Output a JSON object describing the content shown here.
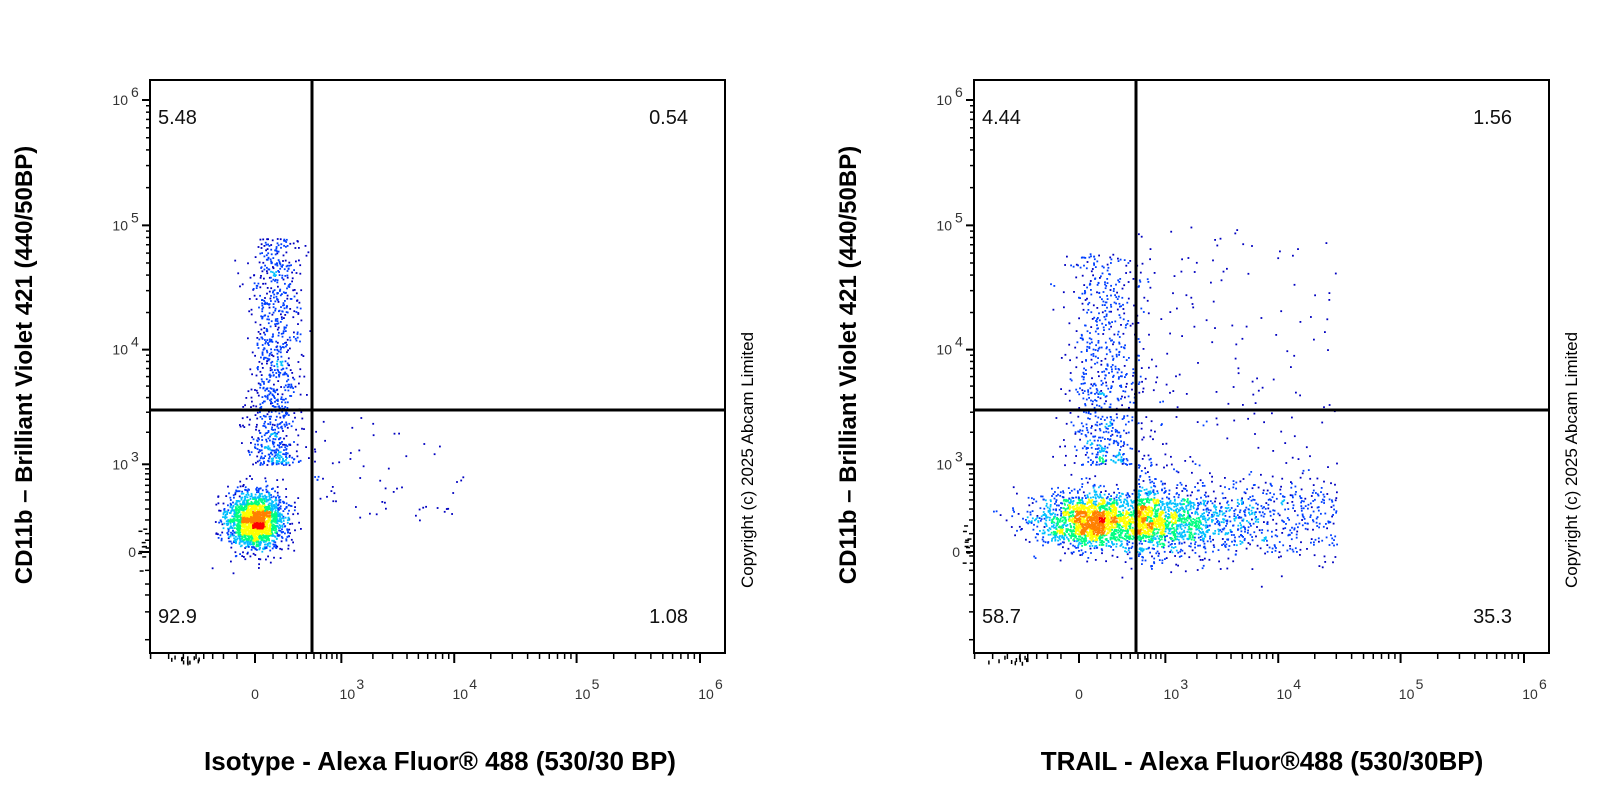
{
  "chart_data": [
    {
      "type": "scatter",
      "xlabel": "Isotype - Alexa Fluor® 488 (530/30 BP)",
      "ylabel": "CD11b – Brilliant Violet 421 (440/50BP)",
      "x_scale": "biexponential",
      "y_scale": "biexponential",
      "x_ticks": [
        "0",
        "10^3",
        "10^4",
        "10^5",
        "10^6"
      ],
      "y_ticks": [
        "0",
        "10^3",
        "10^4",
        "10^5",
        "10^6"
      ],
      "quadrant_gate": {
        "x": 450,
        "y": 1800
      },
      "quadrants": {
        "upper_left": "5.48",
        "upper_right": "0.54",
        "lower_left": "92.9",
        "lower_right": "1.08"
      },
      "copyright": "Copyright (c) 2025 Abcam Limited",
      "population": {
        "main_cluster": {
          "x_center": 0,
          "y_center": 200,
          "x_spread": "narrow",
          "y_spread": "narrow"
        },
        "tail": {
          "x_range": [
            -100,
            800
          ],
          "y_range": [
            1000,
            80000
          ]
        },
        "sparse_right": {
          "x_range": [
            500,
            12000
          ],
          "y_range": [
            0,
            3000
          ]
        }
      },
      "colormap": [
        "#0000c0",
        "#0040ff",
        "#00c0ff",
        "#00ff80",
        "#ffff00",
        "#ff8000",
        "#ff0000"
      ]
    },
    {
      "type": "scatter",
      "xlabel": "TRAIL - Alexa Fluor®488 (530/30BP)",
      "ylabel": "CD11b – Brilliant Violet 421 (440/50BP)",
      "x_scale": "biexponential",
      "y_scale": "biexponential",
      "x_ticks": [
        "0",
        "10^3",
        "10^4",
        "10^5",
        "10^6"
      ],
      "y_ticks": [
        "0",
        "10^3",
        "10^4",
        "10^5",
        "10^6"
      ],
      "quadrant_gate": {
        "x": 450,
        "y": 1800
      },
      "quadrants": {
        "upper_left": "4.44",
        "upper_right": "1.56",
        "lower_left": "58.7",
        "lower_right": "35.3"
      },
      "copyright": "Copyright (c) 2025 Abcam Limited",
      "population": {
        "main_cluster": {
          "x_center": 150,
          "y_center": 200,
          "x_spread": "wide",
          "y_spread": "narrow"
        },
        "tail": {
          "x_range": [
            -200,
            500
          ],
          "y_range": [
            1000,
            60000
          ]
        },
        "sparse_right": {
          "x_range": [
            500,
            30000
          ],
          "y_range": [
            0,
            100000
          ]
        }
      },
      "colormap": [
        "#0000c0",
        "#0040ff",
        "#00c0ff",
        "#00ff80",
        "#ffff00",
        "#ff8000",
        "#ff0000"
      ]
    }
  ]
}
